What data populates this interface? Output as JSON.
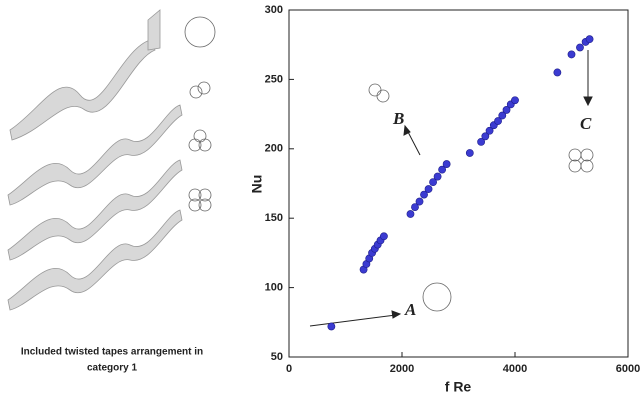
{
  "chart_data": {
    "type": "scatter",
    "caption": [
      "Included twisted tapes arrangement in",
      "category 1"
    ],
    "x_label": "f Re",
    "y_label": "Nu",
    "annotations": [
      "A",
      "B",
      "C"
    ],
    "xlim": [
      0,
      6000
    ],
    "xticks": [
      0,
      2000,
      4000,
      6000
    ],
    "ylim": [
      50,
      300
    ],
    "yticks": [
      50,
      100,
      150,
      200,
      250,
      300
    ],
    "color": "#3b3bd1",
    "x": [
      750,
      1320,
      1370,
      1420,
      1470,
      1520,
      1570,
      1620,
      1680,
      2150,
      2230,
      2310,
      2390,
      2470,
      2550,
      2630,
      2710,
      2790,
      3200,
      3400,
      3475,
      3550,
      3625,
      3700,
      3775,
      3850,
      3925,
      4000,
      4750,
      5000,
      5150,
      5250,
      5320
    ],
    "values": [
      72,
      113,
      117,
      121,
      125,
      128,
      131,
      134,
      137,
      153,
      158,
      162,
      167,
      171,
      176,
      180,
      185,
      189,
      197,
      205,
      209,
      213,
      217,
      220,
      224,
      228,
      232,
      235,
      255,
      268,
      273,
      277,
      279
    ]
  }
}
